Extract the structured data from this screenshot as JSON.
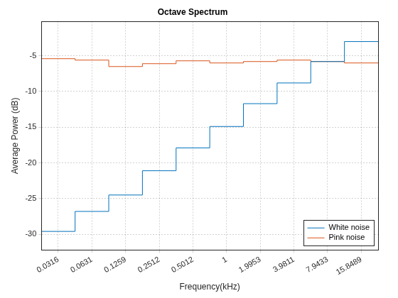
{
  "chart_data": {
    "type": "stairs",
    "title": "Octave Spectrum",
    "x_label": "Frequency(kHz)",
    "y_label": "Average Power (dB)",
    "bins": [
      0.02239,
      0.04467,
      0.08913,
      0.1778,
      0.3548,
      0.7079,
      1.4125,
      2.8184,
      5.6234,
      11.2202,
      22.387
    ],
    "series": [
      {
        "name": "White noise",
        "color": "#0072bd",
        "values": [
          -29.6,
          -26.8,
          -24.5,
          -21.1,
          -17.9,
          -14.9,
          -11.7,
          -8.8,
          -5.8,
          -3.0
        ]
      },
      {
        "name": "Pink noise",
        "color": "#d95319",
        "values": [
          -5.4,
          -5.6,
          -6.5,
          -6.1,
          -5.7,
          -6.0,
          -5.8,
          -5.6,
          -5.8,
          -6.0
        ]
      }
    ],
    "xlim": [
      0.02239,
      22.387
    ],
    "ylim": [
      -32.2,
      -0.2
    ],
    "xticks": [
      0.0316,
      0.0631,
      0.1259,
      0.2512,
      0.5012,
      1,
      1.9953,
      3.9811,
      7.9433,
      15.8489
    ],
    "yticks": [
      -30,
      -25,
      -20,
      -15,
      -10,
      -5
    ],
    "log": "x",
    "grid": true,
    "legend": "southeast"
  }
}
